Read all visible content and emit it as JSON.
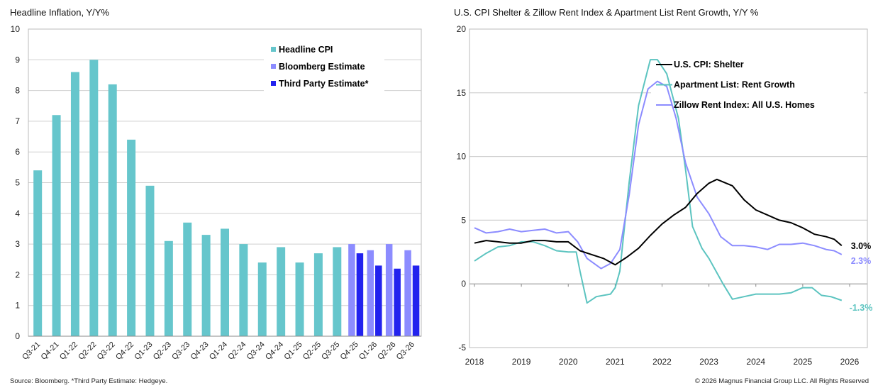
{
  "chart_data": [
    {
      "type": "bar",
      "title": "Headline Inflation, Y/Y%",
      "ylim": [
        0,
        10
      ],
      "yticks": [
        0,
        1,
        2,
        3,
        4,
        5,
        6,
        7,
        8,
        9,
        10
      ],
      "grid": true,
      "legend_placement": "top-right",
      "categories": [
        "Q3-21",
        "Q4-21",
        "Q1-22",
        "Q2-22",
        "Q3-22",
        "Q4-22",
        "Q1-23",
        "Q2-23",
        "Q3-23",
        "Q4-23",
        "Q1-24",
        "Q2-24",
        "Q3-24",
        "Q4-24",
        "Q1-25",
        "Q2-25",
        "Q3-25",
        "Q4-25",
        "Q1-26",
        "Q2-26",
        "Q3-26"
      ],
      "series": [
        {
          "name": "Headline CPI",
          "color": "#66C6CC",
          "values": [
            5.4,
            7.2,
            8.6,
            9.0,
            8.2,
            6.4,
            4.9,
            3.1,
            3.7,
            3.3,
            3.5,
            3.0,
            2.4,
            2.9,
            2.4,
            2.7,
            2.9,
            null,
            null,
            null,
            null
          ]
        },
        {
          "name": "Bloomberg Estimate",
          "color": "#8C8CFF",
          "values": [
            null,
            null,
            null,
            null,
            null,
            null,
            null,
            null,
            null,
            null,
            null,
            null,
            null,
            null,
            null,
            null,
            null,
            3.0,
            2.8,
            3.0,
            2.8
          ]
        },
        {
          "name": "Third Party Estimate*",
          "color": "#2222EE",
          "values": [
            null,
            null,
            null,
            null,
            null,
            null,
            null,
            null,
            null,
            null,
            null,
            null,
            null,
            null,
            null,
            null,
            null,
            2.7,
            2.3,
            2.2,
            2.3
          ]
        }
      ],
      "footnote": "Source: Bloomberg. *Third Party Estimate: Hedgeye."
    },
    {
      "type": "line",
      "title": "U.S. CPI Shelter & Zillow Rent Index & Apartment List Rent Growth, Y/Y %",
      "xlim": [
        2018,
        2026
      ],
      "ylim": [
        -5,
        20
      ],
      "xticks": [
        "2018",
        "2019",
        "2020",
        "2021",
        "2022",
        "2023",
        "2024",
        "2025",
        "2026"
      ],
      "yticks": [
        -5,
        0,
        5,
        10,
        15,
        20
      ],
      "grid": true,
      "legend_placement": "top-right",
      "series": [
        {
          "name": "U.S. CPI: Shelter",
          "color": "#000000",
          "end_label": "3.0%",
          "points": [
            [
              2018.0,
              3.2
            ],
            [
              2018.25,
              3.4
            ],
            [
              2018.5,
              3.3
            ],
            [
              2018.75,
              3.2
            ],
            [
              2019.0,
              3.2
            ],
            [
              2019.25,
              3.4
            ],
            [
              2019.5,
              3.4
            ],
            [
              2019.75,
              3.3
            ],
            [
              2020.0,
              3.3
            ],
            [
              2020.25,
              2.6
            ],
            [
              2020.5,
              2.3
            ],
            [
              2020.75,
              2.0
            ],
            [
              2021.0,
              1.5
            ],
            [
              2021.25,
              2.1
            ],
            [
              2021.5,
              2.8
            ],
            [
              2021.75,
              3.8
            ],
            [
              2022.0,
              4.7
            ],
            [
              2022.25,
              5.4
            ],
            [
              2022.5,
              6.0
            ],
            [
              2022.75,
              7.1
            ],
            [
              2023.0,
              7.9
            ],
            [
              2023.17,
              8.2
            ],
            [
              2023.5,
              7.7
            ],
            [
              2023.75,
              6.6
            ],
            [
              2024.0,
              5.8
            ],
            [
              2024.25,
              5.4
            ],
            [
              2024.5,
              5.0
            ],
            [
              2024.75,
              4.8
            ],
            [
              2025.0,
              4.4
            ],
            [
              2025.25,
              3.9
            ],
            [
              2025.5,
              3.7
            ],
            [
              2025.67,
              3.5
            ],
            [
              2025.83,
              3.0
            ]
          ]
        },
        {
          "name": "Apartment List: Rent Growth",
          "color": "#5CC4C0",
          "end_label": "-1.3%",
          "points": [
            [
              2018.0,
              1.8
            ],
            [
              2018.25,
              2.4
            ],
            [
              2018.5,
              2.9
            ],
            [
              2018.75,
              3.0
            ],
            [
              2019.0,
              3.3
            ],
            [
              2019.25,
              3.3
            ],
            [
              2019.5,
              3.0
            ],
            [
              2019.75,
              2.6
            ],
            [
              2020.0,
              2.5
            ],
            [
              2020.17,
              2.5
            ],
            [
              2020.25,
              1.0
            ],
            [
              2020.4,
              -1.5
            ],
            [
              2020.6,
              -1.0
            ],
            [
              2020.9,
              -0.8
            ],
            [
              2021.0,
              -0.3
            ],
            [
              2021.1,
              1.0
            ],
            [
              2021.3,
              8.0
            ],
            [
              2021.5,
              14.0
            ],
            [
              2021.75,
              17.6
            ],
            [
              2021.9,
              17.6
            ],
            [
              2022.1,
              16.5
            ],
            [
              2022.35,
              13.0
            ],
            [
              2022.5,
              9.0
            ],
            [
              2022.65,
              4.5
            ],
            [
              2022.85,
              2.8
            ],
            [
              2023.0,
              2.0
            ],
            [
              2023.3,
              0.0
            ],
            [
              2023.5,
              -1.2
            ],
            [
              2023.75,
              -1.0
            ],
            [
              2024.0,
              -0.8
            ],
            [
              2024.5,
              -0.8
            ],
            [
              2024.75,
              -0.7
            ],
            [
              2025.0,
              -0.3
            ],
            [
              2025.2,
              -0.3
            ],
            [
              2025.4,
              -0.9
            ],
            [
              2025.6,
              -1.0
            ],
            [
              2025.83,
              -1.3
            ]
          ]
        },
        {
          "name": "Zillow Rent Index: All U.S. Homes",
          "color": "#8C8CFF",
          "end_label": "2.3%",
          "points": [
            [
              2018.0,
              4.4
            ],
            [
              2018.25,
              4.0
            ],
            [
              2018.5,
              4.1
            ],
            [
              2018.75,
              4.3
            ],
            [
              2019.0,
              4.1
            ],
            [
              2019.25,
              4.2
            ],
            [
              2019.5,
              4.3
            ],
            [
              2019.75,
              4.0
            ],
            [
              2020.0,
              4.1
            ],
            [
              2020.2,
              3.3
            ],
            [
              2020.4,
              2.0
            ],
            [
              2020.7,
              1.2
            ],
            [
              2020.9,
              1.6
            ],
            [
              2021.1,
              2.7
            ],
            [
              2021.3,
              7.0
            ],
            [
              2021.5,
              12.5
            ],
            [
              2021.7,
              15.3
            ],
            [
              2021.9,
              15.9
            ],
            [
              2022.1,
              15.5
            ],
            [
              2022.3,
              13.0
            ],
            [
              2022.5,
              9.5
            ],
            [
              2022.75,
              6.8
            ],
            [
              2023.0,
              5.5
            ],
            [
              2023.25,
              3.7
            ],
            [
              2023.5,
              3.0
            ],
            [
              2023.75,
              3.0
            ],
            [
              2024.0,
              2.9
            ],
            [
              2024.25,
              2.7
            ],
            [
              2024.5,
              3.1
            ],
            [
              2024.75,
              3.1
            ],
            [
              2025.0,
              3.2
            ],
            [
              2025.25,
              3.0
            ],
            [
              2025.5,
              2.7
            ],
            [
              2025.67,
              2.6
            ],
            [
              2025.83,
              2.3
            ]
          ]
        }
      ],
      "footnote": "© 2026 Magnus Financial Group LLC. All Rights Reserved"
    }
  ]
}
